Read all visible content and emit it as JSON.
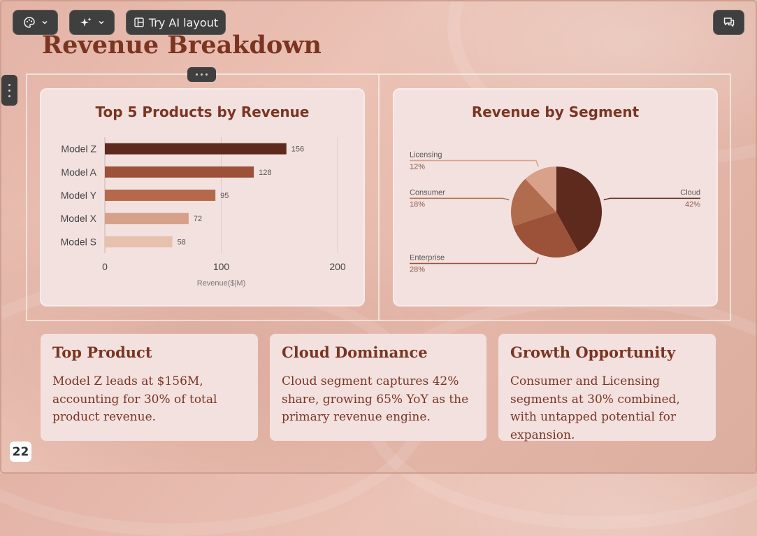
{
  "toolbar": {
    "theme_icon": "palette-icon",
    "ai_icon": "sparkle-icon",
    "ai_layout_label": "Try AI layout",
    "comment_icon": "comment-icon"
  },
  "slide": {
    "title": "Revenue Breakdown",
    "page_number": "22"
  },
  "chart_data": [
    {
      "type": "bar",
      "title": "Top 5 Products by Revenue",
      "orientation": "horizontal",
      "categories": [
        "Model Z",
        "Model A",
        "Model Y",
        "Model X",
        "Model S"
      ],
      "values": [
        156,
        128,
        95,
        72,
        58
      ],
      "colors": [
        "#5e2a1e",
        "#9b5238",
        "#b4694a",
        "#d6a08a",
        "#e6c1ad"
      ],
      "xlabel": "Revenue($|M)",
      "xticks": [
        "0",
        "100",
        "200"
      ],
      "xlim": [
        0,
        200
      ],
      "grid": true
    },
    {
      "type": "pie",
      "title": "Revenue by Segment",
      "slices": [
        {
          "label": "Cloud",
          "value": 42,
          "pct": "42%",
          "color": "#5e2a1e"
        },
        {
          "label": "Enterprise",
          "value": 28,
          "pct": "28%",
          "color": "#9b5238"
        },
        {
          "label": "Consumer",
          "value": 18,
          "pct": "18%",
          "color": "#b06c4c"
        },
        {
          "label": "Licensing",
          "value": 12,
          "pct": "12%",
          "color": "#d9a08a"
        }
      ]
    }
  ],
  "insights": [
    {
      "title": "Top Product",
      "body": "Model Z leads at $156M, accounting for 30% of total product revenue."
    },
    {
      "title": "Cloud Dominance",
      "body": "Cloud segment captures 42% share, growing 65% YoY as the primary revenue engine."
    },
    {
      "title": "Growth Opportunity",
      "body": "Consumer and Licensing segments at 30% combined, with untapped potential for expansion."
    }
  ]
}
